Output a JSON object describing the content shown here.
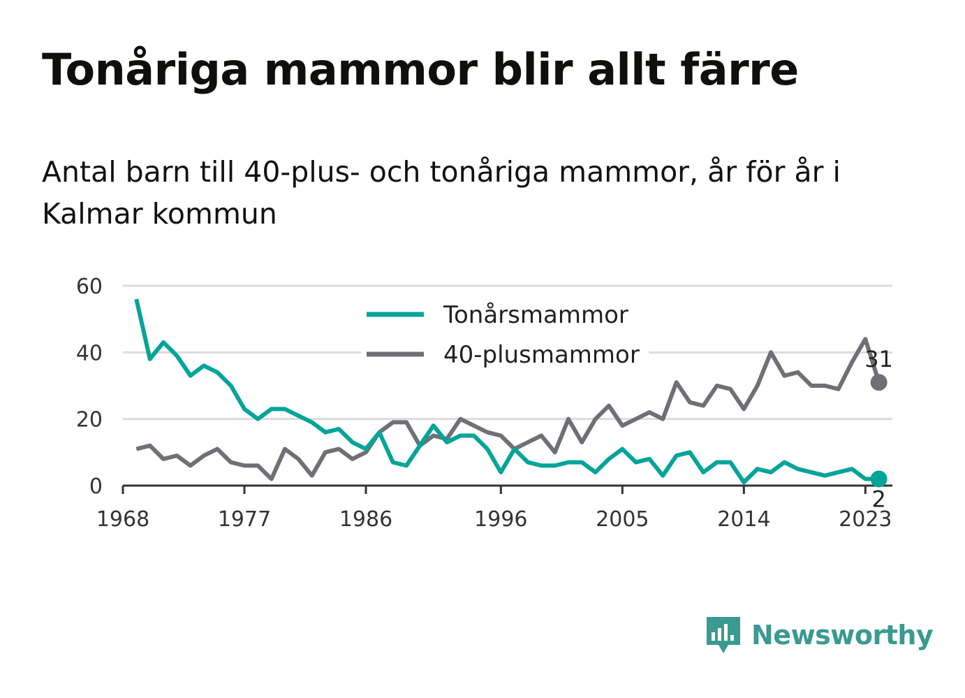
{
  "header": {
    "title": "Tonåriga mammor blir allt färre",
    "subtitle": "Antal barn till 40-plus- och tonåriga mammor, år för år i Kalmar kommun"
  },
  "brand": {
    "name": "Newsworthy",
    "icon": "newsworthy-bar-chart-icon",
    "color": "#3a9a91"
  },
  "chart_data": {
    "type": "line",
    "x": [
      1969,
      1970,
      1971,
      1972,
      1973,
      1974,
      1975,
      1976,
      1977,
      1978,
      1979,
      1980,
      1981,
      1982,
      1983,
      1984,
      1985,
      1986,
      1987,
      1988,
      1989,
      1990,
      1991,
      1992,
      1993,
      1994,
      1995,
      1996,
      1997,
      1998,
      1999,
      2000,
      2001,
      2002,
      2003,
      2004,
      2005,
      2006,
      2007,
      2008,
      2009,
      2010,
      2011,
      2012,
      2013,
      2014,
      2015,
      2016,
      2017,
      2018,
      2019,
      2020,
      2021,
      2022,
      2023,
      2024
    ],
    "series": [
      {
        "name": "Tonårsmammor",
        "color": "#00a499",
        "values": [
          56,
          38,
          43,
          39,
          33,
          36,
          34,
          30,
          23,
          20,
          23,
          23,
          21,
          19,
          16,
          17,
          13,
          11,
          16,
          7,
          6,
          12,
          18,
          13,
          15,
          15,
          11,
          4,
          11,
          7,
          6,
          6,
          7,
          7,
          4,
          8,
          11,
          7,
          8,
          3,
          9,
          10,
          4,
          7,
          7,
          1,
          5,
          4,
          7,
          5,
          4,
          3,
          4,
          5,
          2,
          2
        ]
      },
      {
        "name": "40-plusmammor",
        "color": "#706f75",
        "values": [
          11,
          12,
          8,
          9,
          6,
          9,
          11,
          7,
          6,
          6,
          2,
          11,
          8,
          3,
          10,
          11,
          8,
          10,
          16,
          19,
          19,
          12,
          15,
          14,
          20,
          18,
          16,
          15,
          11,
          13,
          15,
          10,
          20,
          13,
          20,
          24,
          18,
          20,
          22,
          20,
          31,
          25,
          24,
          30,
          29,
          23,
          30,
          40,
          33,
          34,
          30,
          30,
          29,
          37,
          44,
          31
        ]
      }
    ],
    "x_ticks": [
      1968,
      1977,
      1986,
      1996,
      2005,
      2014,
      2023
    ],
    "y_ticks": [
      0,
      20,
      40,
      60
    ],
    "ylim": [
      0,
      60
    ],
    "xlim": [
      1968,
      2025
    ],
    "end_labels": [
      {
        "series": "40-plusmammor",
        "x": 2024,
        "value": 31,
        "text": "31"
      },
      {
        "series": "Tonårsmammor",
        "x": 2024,
        "value": 2,
        "text": "2"
      }
    ],
    "legend_position": "top-center",
    "grid": "horizontal",
    "xlabel": "",
    "ylabel": ""
  }
}
